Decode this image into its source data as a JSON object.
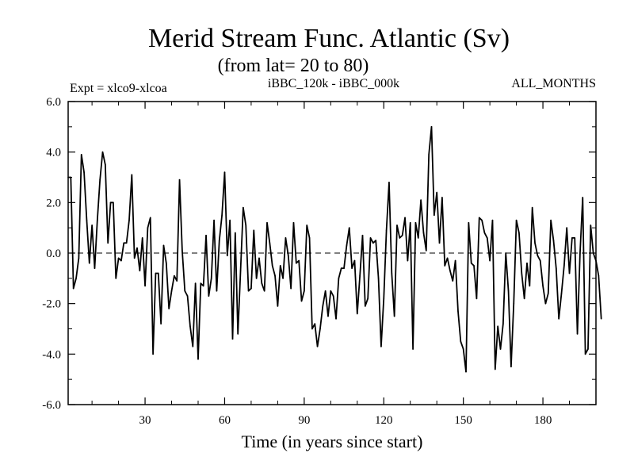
{
  "chart_data": {
    "type": "line",
    "title": "Merid Stream Func. Atlantic (Sv)",
    "subtitle": "(from lat= 20 to 80)",
    "top_left_label": "Expt = xlco9-xlcoa",
    "top_center_label": "iBBC_120k - iBBC_000k",
    "top_right_label": "ALL_MONTHS",
    "xlabel": "Time (in years since start)",
    "ylabel": "",
    "xlim": [
      1,
      200
    ],
    "ylim": [
      -6,
      6
    ],
    "x_ticks": [
      30,
      60,
      90,
      120,
      150,
      180
    ],
    "x_tick_labels": [
      "30",
      "60",
      "90",
      "120",
      "150",
      "180"
    ],
    "y_ticks": [
      6,
      4,
      2,
      0,
      -2,
      -4,
      -6
    ],
    "y_tick_labels": [
      "6.0",
      "4.0",
      "2.0",
      "0.0",
      "-2.0",
      "-4.0",
      "-6.0"
    ],
    "reference_line": 0,
    "series": [
      {
        "name": "iBBC_120k - iBBC_000k",
        "x_start": 1,
        "x_step": 1,
        "values": [
          3.0,
          3.0,
          -1.4,
          -1.0,
          -0.2,
          3.9,
          3.2,
          1.3,
          -0.4,
          1.1,
          -0.6,
          1.3,
          2.9,
          4.0,
          3.5,
          0.4,
          2.0,
          2.0,
          -1.0,
          -0.2,
          -0.3,
          0.4,
          0.4,
          1.3,
          3.1,
          -0.2,
          0.2,
          -0.7,
          0.6,
          -1.3,
          1.0,
          1.4,
          -4.0,
          -0.8,
          -0.8,
          -2.8,
          0.3,
          -0.4,
          -2.2,
          -1.5,
          -0.9,
          -1.1,
          2.9,
          0.1,
          -1.5,
          -1.7,
          -2.9,
          -3.7,
          -1.2,
          -4.2,
          -1.2,
          -1.3,
          0.7,
          -1.7,
          -1.0,
          1.3,
          -1.5,
          0.5,
          1.5,
          3.2,
          -0.1,
          1.3,
          -3.4,
          0.8,
          -3.2,
          -0.7,
          1.8,
          1.1,
          -1.5,
          -1.4,
          0.9,
          -1.0,
          -0.2,
          -1.2,
          -1.5,
          1.2,
          0.4,
          -0.5,
          -0.9,
          -2.1,
          -0.5,
          -1.0,
          0.6,
          -0.1,
          -1.4,
          1.2,
          -0.4,
          -0.3,
          -1.9,
          -1.5,
          1.1,
          0.6,
          -3.0,
          -2.8,
          -3.7,
          -3.0,
          -2.1,
          -1.5,
          -2.5,
          -1.5,
          -1.7,
          -2.6,
          -1.0,
          -0.6,
          -0.6,
          0.3,
          1.0,
          -0.6,
          -0.3,
          -2.4,
          -0.9,
          0.7,
          -2.1,
          -1.8,
          0.6,
          0.4,
          0.5,
          -1.0,
          -3.7,
          -1.8,
          0.9,
          2.8,
          -0.8,
          -2.5,
          1.1,
          0.6,
          0.7,
          1.4,
          -0.3,
          1.2,
          -3.8,
          1.2,
          0.6,
          2.1,
          0.8,
          0.1,
          3.9,
          5.0,
          1.5,
          2.4,
          0.4,
          2.2,
          -0.5,
          -0.2,
          -0.7,
          -1.1,
          -0.3,
          -2.3,
          -3.5,
          -3.8,
          -4.7,
          1.2,
          -0.4,
          -0.5,
          -1.8,
          1.4,
          1.3,
          0.8,
          0.6,
          -0.3,
          1.3,
          -4.6,
          -2.9,
          -3.8,
          -2.8,
          0.0,
          -1.5,
          -4.5,
          -2.0,
          1.3,
          0.8,
          -0.8,
          -1.8,
          -0.4,
          -1.3,
          1.8,
          0.4,
          -0.1,
          -0.3,
          -1.3,
          -2.0,
          -1.6,
          1.3,
          0.5,
          -0.6,
          -2.6,
          -1.6,
          -0.5,
          1.0,
          -0.8,
          0.6,
          0.6,
          -3.2,
          0.0,
          2.2,
          -4.0,
          -3.8,
          1.1,
          0.0,
          -0.3,
          -0.9,
          -2.6
        ]
      }
    ]
  }
}
